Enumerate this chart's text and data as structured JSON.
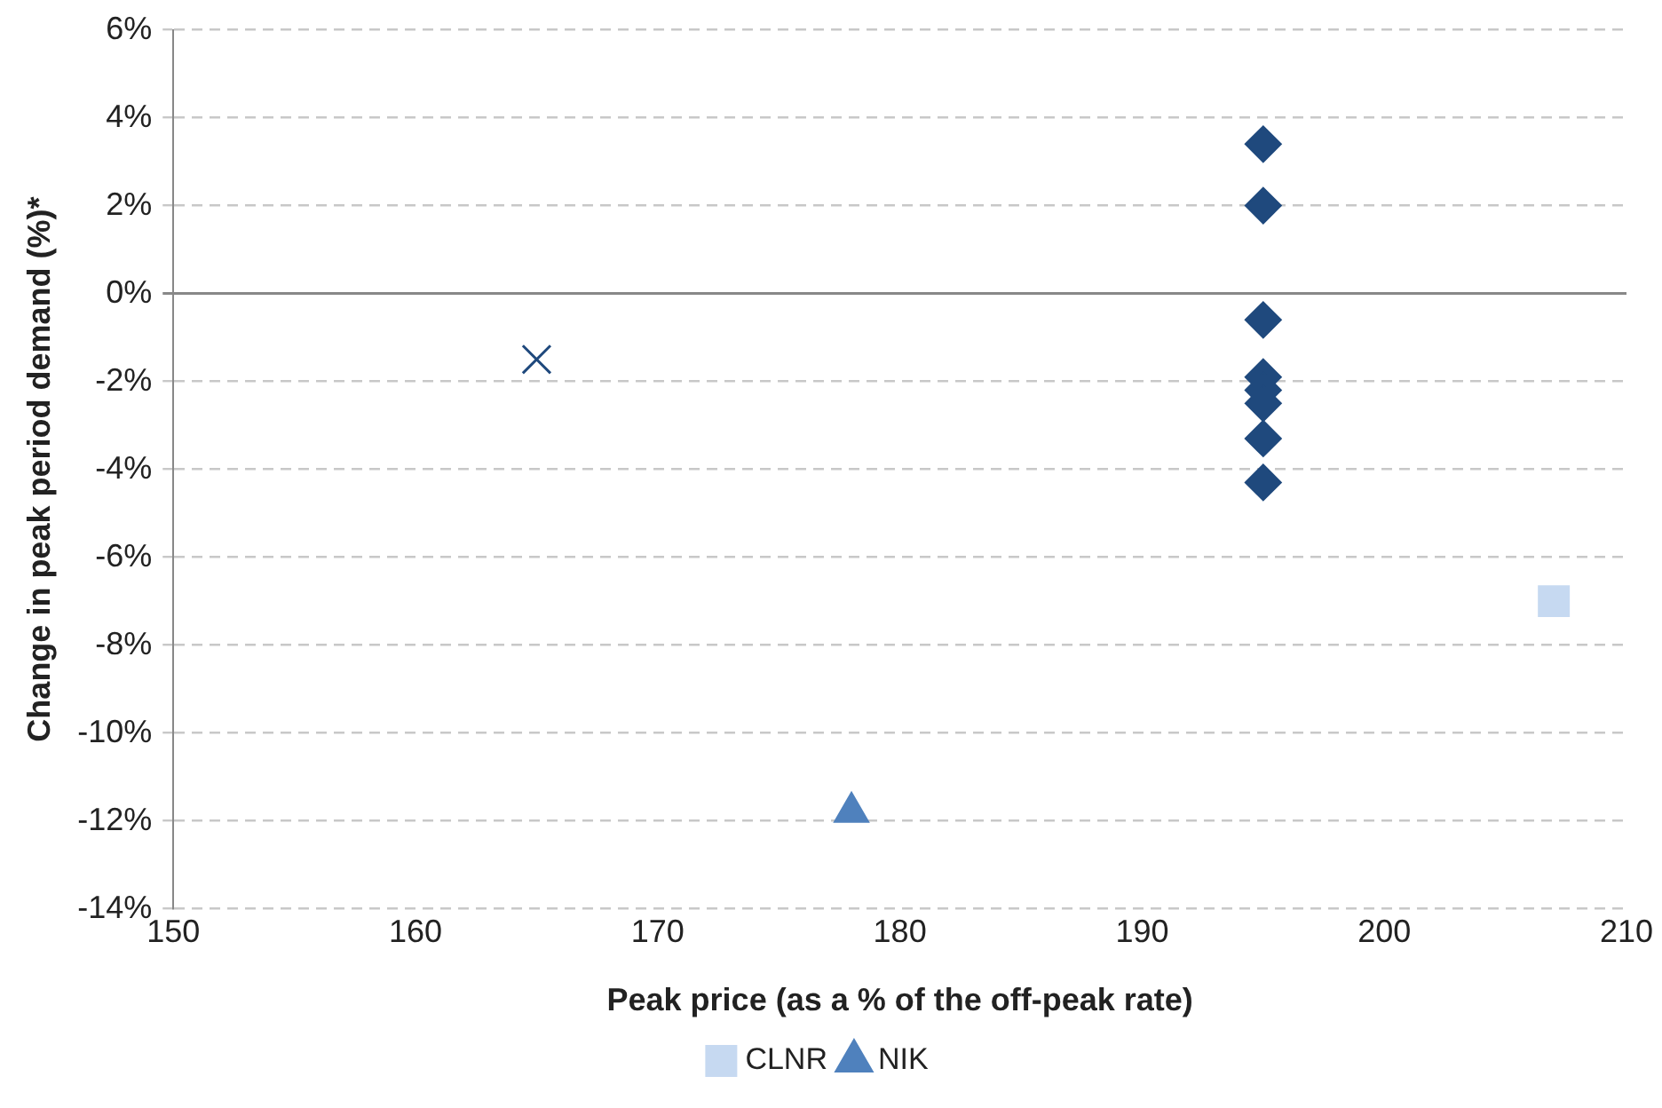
{
  "chart_data": {
    "type": "scatter",
    "xlabel": "Peak price (as a % of the off-peak rate)",
    "ylabel": "Change in peak period demand (%)*",
    "xlim": [
      150,
      210
    ],
    "xticks": [
      150,
      160,
      170,
      180,
      190,
      200,
      210
    ],
    "ylim": [
      -14,
      6
    ],
    "yticks": [
      {
        "value": -14,
        "label": "-14%"
      },
      {
        "value": -12,
        "label": "-12%"
      },
      {
        "value": -10,
        "label": "-10%"
      },
      {
        "value": -8,
        "label": "-8%"
      },
      {
        "value": -6,
        "label": "-6%"
      },
      {
        "value": -4,
        "label": "-4%"
      },
      {
        "value": -2,
        "label": "-2%"
      },
      {
        "value": 0,
        "label": "0%"
      },
      {
        "value": 2,
        "label": "2%"
      },
      {
        "value": 4,
        "label": "4%"
      },
      {
        "value": 6,
        "label": "6%"
      }
    ],
    "grid": "y",
    "legend": "bottom",
    "series": [
      {
        "color": "#1f497d",
        "marker": "diamond",
        "x": [
          195,
          195,
          195,
          195,
          195,
          195,
          195,
          195
        ],
        "values": [
          3.4,
          2.0,
          -0.6,
          -1.9,
          -2.2,
          -2.5,
          -3.3,
          -4.3
        ]
      },
      {
        "name": "CLNR",
        "color": "#c6d9f1",
        "marker": "square",
        "x": [
          207
        ],
        "values": [
          -7.0
        ]
      },
      {
        "name": "NIK",
        "color": "#4f81bd",
        "marker": "triangle",
        "x": [
          178
        ],
        "values": [
          -11.8
        ]
      },
      {
        "color": "#1f497d",
        "marker": "cross",
        "x": [
          165
        ],
        "values": [
          -1.5
        ]
      }
    ]
  }
}
